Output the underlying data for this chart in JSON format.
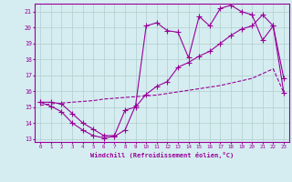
{
  "xlabel": "Windchill (Refroidissement éolien,°C)",
  "bg_color": "#d5edf0",
  "grid_color": "#b0cece",
  "line_color": "#990099",
  "xlim": [
    -0.5,
    23.5
  ],
  "ylim": [
    12.8,
    21.5
  ],
  "xticks": [
    0,
    1,
    2,
    3,
    4,
    5,
    6,
    7,
    8,
    9,
    10,
    11,
    12,
    13,
    14,
    15,
    16,
    17,
    18,
    19,
    20,
    21,
    22,
    23
  ],
  "yticks": [
    13,
    14,
    15,
    16,
    17,
    18,
    19,
    20,
    21
  ],
  "line1_x": [
    0,
    1,
    2,
    3,
    4,
    5,
    6,
    7,
    8,
    9,
    10,
    11,
    12,
    13,
    14,
    15,
    16,
    17,
    18,
    19,
    20,
    21,
    22,
    23
  ],
  "line1_y": [
    15.3,
    15.3,
    15.2,
    14.6,
    14.0,
    13.6,
    13.2,
    13.2,
    14.8,
    15.0,
    15.8,
    16.3,
    16.6,
    17.5,
    17.8,
    18.2,
    18.5,
    19.0,
    19.5,
    19.9,
    20.1,
    20.8,
    20.1,
    15.9
  ],
  "line2_x": [
    0,
    1,
    2,
    3,
    4,
    5,
    6,
    7,
    8,
    9,
    10,
    11,
    12,
    13,
    14,
    15,
    16,
    17,
    18,
    19,
    20,
    21,
    22,
    23
  ],
  "line2_y": [
    15.1,
    15.2,
    15.25,
    15.3,
    15.35,
    15.4,
    15.5,
    15.55,
    15.6,
    15.65,
    15.7,
    15.75,
    15.85,
    15.95,
    16.05,
    16.15,
    16.25,
    16.35,
    16.5,
    16.65,
    16.8,
    17.1,
    17.4,
    15.9
  ],
  "line3_x": [
    0,
    1,
    2,
    3,
    4,
    5,
    6,
    7,
    8,
    9,
    10,
    11,
    12,
    13,
    14,
    15,
    16,
    17,
    18,
    19,
    20,
    21,
    22,
    23
  ],
  "line3_y": [
    15.3,
    15.05,
    14.7,
    14.0,
    13.55,
    13.2,
    13.05,
    13.15,
    13.55,
    15.1,
    20.1,
    20.3,
    19.8,
    19.7,
    18.1,
    20.7,
    20.1,
    21.2,
    21.4,
    21.0,
    20.8,
    19.2,
    20.1,
    16.8
  ],
  "marker_size": 2.5
}
